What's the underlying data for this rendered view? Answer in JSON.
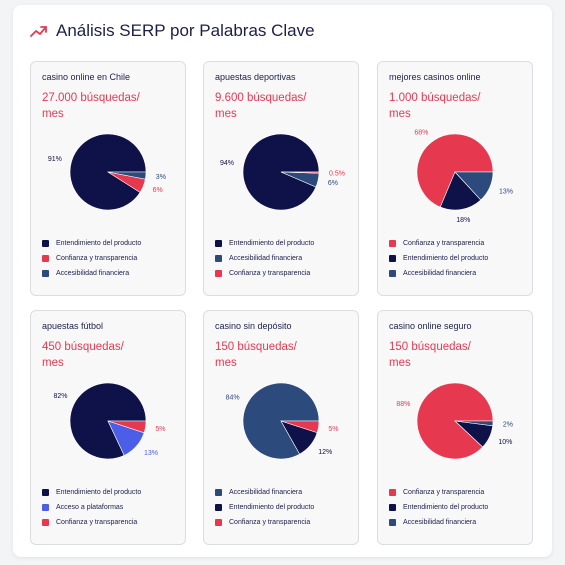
{
  "header": {
    "title": "Análisis SERP por Palabras Clave",
    "icon": "trending-up-icon"
  },
  "colors": {
    "Entendimiento del producto": "#0f1248",
    "Confianza y transparencia": "#e63950",
    "Accesibilidad financiera": "#2c4a7c",
    "Acceso a plataformas": "#4a5ee8"
  },
  "chart_data": [
    {
      "type": "pie",
      "title": "casino online en Chile",
      "subtitle": "27.000 búsquedas/ mes",
      "labels": [
        "Entendimiento del producto",
        "Confianza y transparencia",
        "Accesibilidad financiera"
      ],
      "values": [
        91,
        6,
        3
      ],
      "value_labels": [
        "91%",
        "6%",
        "3%"
      ]
    },
    {
      "type": "pie",
      "title": "apuestas deportivas",
      "subtitle": "9.600 búsquedas/ mes",
      "labels": [
        "Entendimiento del producto",
        "Accesibilidad financiera",
        "Confianza y transparencia"
      ],
      "values": [
        94,
        6,
        0.5
      ],
      "value_labels": [
        "94%",
        "6%",
        "0.5%"
      ]
    },
    {
      "type": "pie",
      "title": "mejores casinos online",
      "subtitle": "1.000 búsquedas/ mes",
      "labels": [
        "Confianza y transparencia",
        "Entendimiento del producto",
        "Accesibilidad financiera"
      ],
      "values": [
        68,
        18,
        13
      ],
      "value_labels": [
        "68%",
        "18%",
        "13%"
      ]
    },
    {
      "type": "pie",
      "title": "apuestas fútbol",
      "subtitle": "450 búsquedas/ mes",
      "labels": [
        "Entendimiento del producto",
        "Acceso a plataformas",
        "Confianza y transparencia"
      ],
      "values": [
        82,
        13,
        5
      ],
      "value_labels": [
        "82%",
        "13%",
        "5%"
      ]
    },
    {
      "type": "pie",
      "title": "casino sin depósito",
      "subtitle": "150 búsquedas/ mes",
      "labels": [
        "Accesibilidad financiera",
        "Entendimiento del producto",
        "Confianza y transparencia"
      ],
      "values": [
        84,
        12,
        5
      ],
      "value_labels": [
        "84%",
        "12%",
        "5%"
      ]
    },
    {
      "type": "pie",
      "title": "casino online seguro",
      "subtitle": "150 búsquedas/ mes",
      "labels": [
        "Confianza y transparencia",
        "Entendimiento del producto",
        "Accesibilidad financiera"
      ],
      "values": [
        88,
        10,
        2
      ],
      "value_labels": [
        "88%",
        "10%",
        "2%"
      ]
    }
  ]
}
